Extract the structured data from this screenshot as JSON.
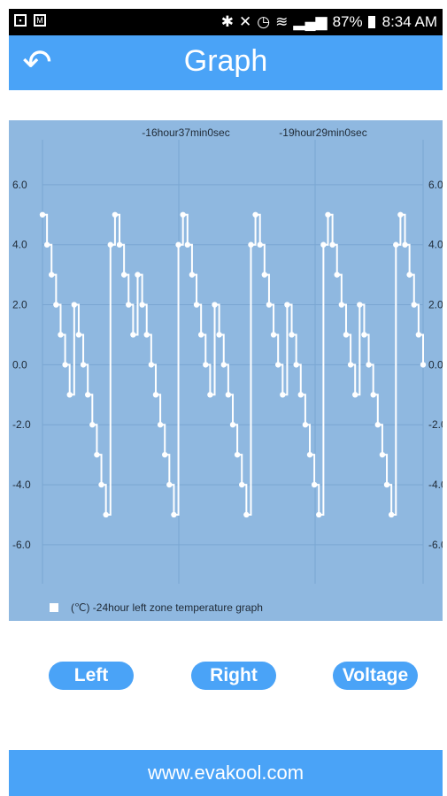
{
  "status_bar": {
    "left_icons": [
      "image-icon",
      "mail-icon"
    ],
    "right_icons": [
      "bluetooth-icon",
      "mute-icon",
      "alarm-icon",
      "wifi-icon",
      "signal-icon"
    ],
    "battery": "87%",
    "time": "8:34 AM"
  },
  "header": {
    "back_icon": "back-arrow-icon",
    "title": "Graph"
  },
  "chart_data": {
    "type": "line",
    "top_labels": [
      "-16hour37min0sec",
      "-19hour29min0sec"
    ],
    "y_ticks": [
      "6.0",
      "4.0",
      "2.0",
      "0.0",
      "-2.0",
      "-4.0",
      "-6.0"
    ],
    "ylim": [
      -7.3,
      7.5
    ],
    "grid": true,
    "legend": "bottom-left",
    "series": [
      {
        "name": "(℃)  -24hour left zone temperature graph",
        "color": "#ffffff",
        "values": [
          5,
          4,
          3,
          2,
          1,
          0,
          -1,
          2,
          1,
          0,
          -1,
          -2,
          -3,
          -4,
          -5,
          4,
          5,
          4,
          3,
          2,
          1,
          3,
          2,
          1,
          0,
          -1,
          -2,
          -3,
          -4,
          -5,
          4,
          5,
          4,
          3,
          2,
          1,
          0,
          -1,
          2,
          1,
          0,
          -1,
          -2,
          -3,
          -4,
          -5,
          4,
          5,
          4,
          3,
          2,
          1,
          0,
          -1,
          2,
          1,
          0,
          -1,
          -2,
          -3,
          -4,
          -5,
          4,
          5,
          4,
          3,
          2,
          1,
          0,
          -1,
          2,
          1,
          0,
          -1,
          -2,
          -3,
          -4,
          -5,
          4,
          5,
          4,
          3,
          2,
          1,
          0
        ]
      }
    ],
    "colors": {
      "background": "#8fb8e0",
      "grid": "#7aa6d2",
      "line": "#ffffff"
    }
  },
  "legend_text": "(℃)  -24hour left zone temperature graph",
  "buttons": {
    "left": "Left",
    "right": "Right",
    "voltage": "Voltage"
  },
  "footer": {
    "url": "www.evakool.com"
  },
  "theme": {
    "accent": "#4aa3f7"
  }
}
